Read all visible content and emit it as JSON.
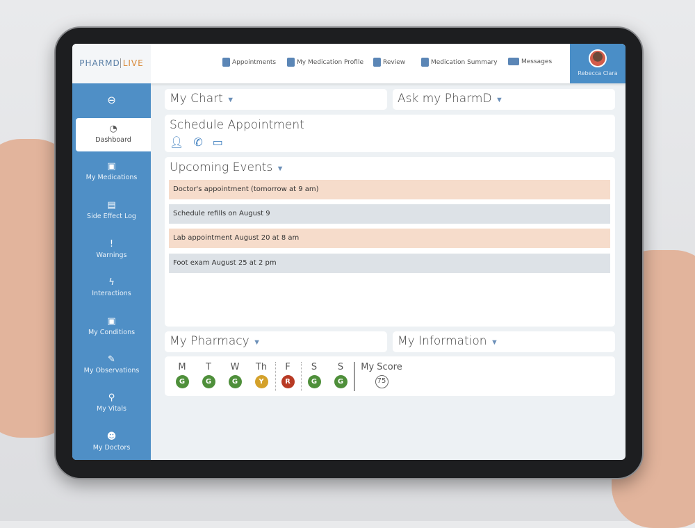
{
  "header": {
    "logo_left": "PHARMD",
    "logo_right": "LIVE",
    "nav": [
      {
        "label": "Appointments",
        "icon": "calendar-icon"
      },
      {
        "label": "My Medication Profile",
        "icon": "medication-icon"
      },
      {
        "label": "Review",
        "icon": "clipboard-check-icon"
      },
      {
        "label": "Medication Summary",
        "icon": "clipboard-plus-icon"
      },
      {
        "label": "Messages",
        "icon": "envelope-icon"
      }
    ],
    "user": "Rebecca Clara"
  },
  "sidebar": {
    "items": [
      {
        "label": "Dashboard",
        "glyph": "◔"
      },
      {
        "label": "My Medications",
        "glyph": "▣"
      },
      {
        "label": "Side Effect Log",
        "glyph": "▤"
      },
      {
        "label": "Warnings",
        "glyph": "!"
      },
      {
        "label": "Interactions",
        "glyph": "ϟ"
      },
      {
        "label": "My Conditions",
        "glyph": "▣"
      },
      {
        "label": "My Observations",
        "glyph": "✎"
      },
      {
        "label": "My Vitals",
        "glyph": "⚲"
      },
      {
        "label": "My Doctors",
        "glyph": "☻"
      }
    ]
  },
  "main": {
    "my_chart": "My Chart",
    "ask": "Ask my PharmD",
    "schedule": "Schedule Appointment",
    "upcoming": "Upcoming Events",
    "events": [
      "Doctor's appointment (tomorrow at 9 am)",
      "Schedule refills on August 9",
      "Lab appointment August 20 at 8 am",
      "Foot exam August 25 at 2 pm"
    ],
    "pharmacy": "My Pharmacy",
    "info": "My Information",
    "week": [
      {
        "day": "M",
        "grade": "G"
      },
      {
        "day": "T",
        "grade": "G"
      },
      {
        "day": "W",
        "grade": "G"
      },
      {
        "day": "Th",
        "grade": "Y"
      },
      {
        "day": "F",
        "grade": "R"
      },
      {
        "day": "S",
        "grade": "G"
      },
      {
        "day": "S",
        "grade": "G"
      }
    ],
    "score_label": "My Score",
    "score": "75"
  },
  "colors": {
    "G": "#4e8f3a",
    "Y": "#d4a12a",
    "R": "#b83a24",
    "sidebar": "#4f8fc6",
    "accent": "#d98a3a"
  }
}
